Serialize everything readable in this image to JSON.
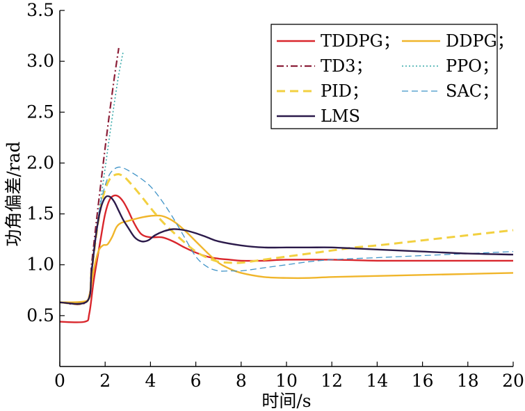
{
  "chart_data": {
    "type": "line",
    "xlabel": "时间/s",
    "ylabel": "功角偏差/rad",
    "xlim": [
      0,
      20
    ],
    "ylim": [
      0,
      3.5
    ],
    "xticks": [
      "0",
      "2",
      "4",
      "6",
      "8",
      "10",
      "12",
      "14",
      "16",
      "18",
      "20"
    ],
    "yticks": [
      "0.5",
      "1.0",
      "1.5",
      "2.0",
      "2.5",
      "3.0",
      "3.5"
    ],
    "grid": false,
    "legend_position": "top-right",
    "series": [
      {
        "name": "TDDPG；",
        "color": "#d9262c",
        "dash": "solid",
        "x": [
          0,
          1.1,
          1.3,
          1.5,
          1.8,
          2.0,
          2.2,
          2.4,
          2.6,
          2.8,
          3.0,
          3.3,
          3.6,
          4.0,
          4.5,
          5.0,
          5.5,
          6.0,
          6.5,
          7.0,
          7.5,
          8.0,
          9.0,
          10.0,
          12.0,
          14.0,
          16.0,
          18.0,
          20.0
        ],
        "y": [
          0.44,
          0.44,
          0.52,
          0.85,
          1.25,
          1.5,
          1.64,
          1.68,
          1.67,
          1.62,
          1.54,
          1.4,
          1.3,
          1.27,
          1.27,
          1.23,
          1.17,
          1.12,
          1.08,
          1.06,
          1.05,
          1.04,
          1.04,
          1.05,
          1.05,
          1.04,
          1.04,
          1.04,
          1.04
        ]
      },
      {
        "name": "DDPG；",
        "color": "#f0b52a",
        "dash": "solid",
        "x": [
          0,
          1.1,
          1.3,
          1.5,
          1.7,
          1.9,
          2.1,
          2.3,
          2.5,
          2.7,
          3.0,
          3.5,
          4.0,
          4.5,
          5.0,
          5.5,
          6.0,
          6.5,
          7.0,
          7.5,
          8.0,
          9.0,
          10.0,
          11.0,
          12.0,
          14.0,
          16.0,
          18.0,
          20.0
        ],
        "y": [
          0.63,
          0.64,
          0.7,
          0.95,
          1.13,
          1.19,
          1.2,
          1.27,
          1.37,
          1.41,
          1.43,
          1.46,
          1.48,
          1.48,
          1.43,
          1.34,
          1.23,
          1.12,
          1.02,
          0.96,
          0.92,
          0.88,
          0.87,
          0.87,
          0.88,
          0.89,
          0.9,
          0.91,
          0.92
        ]
      },
      {
        "name": "TD3；",
        "color": "#8b1f38",
        "dash": "dashdot",
        "x": [
          0,
          1.2,
          1.4,
          1.6,
          1.8,
          2.0,
          2.2,
          2.4,
          2.6
        ],
        "y": [
          0.63,
          0.64,
          1.0,
          1.4,
          1.78,
          2.15,
          2.5,
          2.83,
          3.13
        ]
      },
      {
        "name": "PPO；",
        "color": "#35a8a8",
        "dash": "dotted",
        "x": [
          0,
          1.2,
          1.4,
          1.6,
          1.8,
          2.0,
          2.2,
          2.4,
          2.6,
          2.8
        ],
        "y": [
          0.63,
          0.64,
          0.95,
          1.3,
          1.63,
          1.95,
          2.27,
          2.58,
          2.87,
          3.1
        ]
      },
      {
        "name": "PID；",
        "color": "#f2d040",
        "dash": "dashed",
        "x": [
          0,
          1.2,
          1.4,
          1.6,
          1.8,
          2.0,
          2.2,
          2.4,
          2.6,
          2.8,
          3.0,
          3.5,
          4.0,
          4.5,
          5.0,
          5.5,
          6.0,
          6.5,
          7.0,
          7.5,
          8.0,
          9.0,
          10.0,
          11.0,
          12.0,
          13.0,
          14.0,
          16.0,
          18.0,
          20.0
        ],
        "y": [
          0.63,
          0.64,
          0.93,
          1.28,
          1.56,
          1.74,
          1.84,
          1.88,
          1.89,
          1.87,
          1.83,
          1.7,
          1.56,
          1.43,
          1.32,
          1.22,
          1.13,
          1.07,
          1.03,
          1.02,
          1.02,
          1.05,
          1.08,
          1.11,
          1.14,
          1.17,
          1.19,
          1.24,
          1.29,
          1.34
        ]
      },
      {
        "name": "SAC；",
        "color": "#3f93c7",
        "dash": "dashed-thin",
        "x": [
          0,
          1.2,
          1.4,
          1.6,
          1.8,
          2.0,
          2.2,
          2.4,
          2.6,
          2.8,
          3.0,
          3.5,
          4.0,
          4.5,
          5.0,
          5.5,
          6.0,
          6.5,
          7.0,
          7.5,
          8.0,
          9.0,
          10.0,
          11.0,
          12.0,
          14.0,
          16.0,
          18.0,
          20.0
        ],
        "y": [
          0.63,
          0.64,
          0.97,
          1.33,
          1.6,
          1.78,
          1.89,
          1.94,
          1.96,
          1.95,
          1.93,
          1.86,
          1.77,
          1.63,
          1.46,
          1.27,
          1.08,
          0.98,
          0.94,
          0.94,
          0.94,
          0.97,
          1.0,
          1.03,
          1.05,
          1.07,
          1.09,
          1.11,
          1.13
        ]
      },
      {
        "name": "LMS",
        "color": "#2b1a4a",
        "dash": "solid",
        "x": [
          0,
          1.2,
          1.4,
          1.6,
          1.8,
          2.0,
          2.2,
          2.4,
          2.6,
          2.8,
          3.0,
          3.3,
          3.6,
          3.9,
          4.2,
          4.6,
          5.0,
          5.5,
          6.0,
          6.5,
          7.0,
          8.0,
          9.0,
          10.0,
          11.0,
          12.0,
          13.0,
          14.0,
          16.0,
          18.0,
          20.0
        ],
        "y": [
          0.63,
          0.64,
          0.93,
          1.3,
          1.55,
          1.66,
          1.67,
          1.62,
          1.53,
          1.44,
          1.37,
          1.27,
          1.23,
          1.24,
          1.29,
          1.33,
          1.35,
          1.34,
          1.31,
          1.27,
          1.23,
          1.19,
          1.17,
          1.17,
          1.17,
          1.17,
          1.16,
          1.15,
          1.13,
          1.11,
          1.1
        ]
      }
    ]
  }
}
